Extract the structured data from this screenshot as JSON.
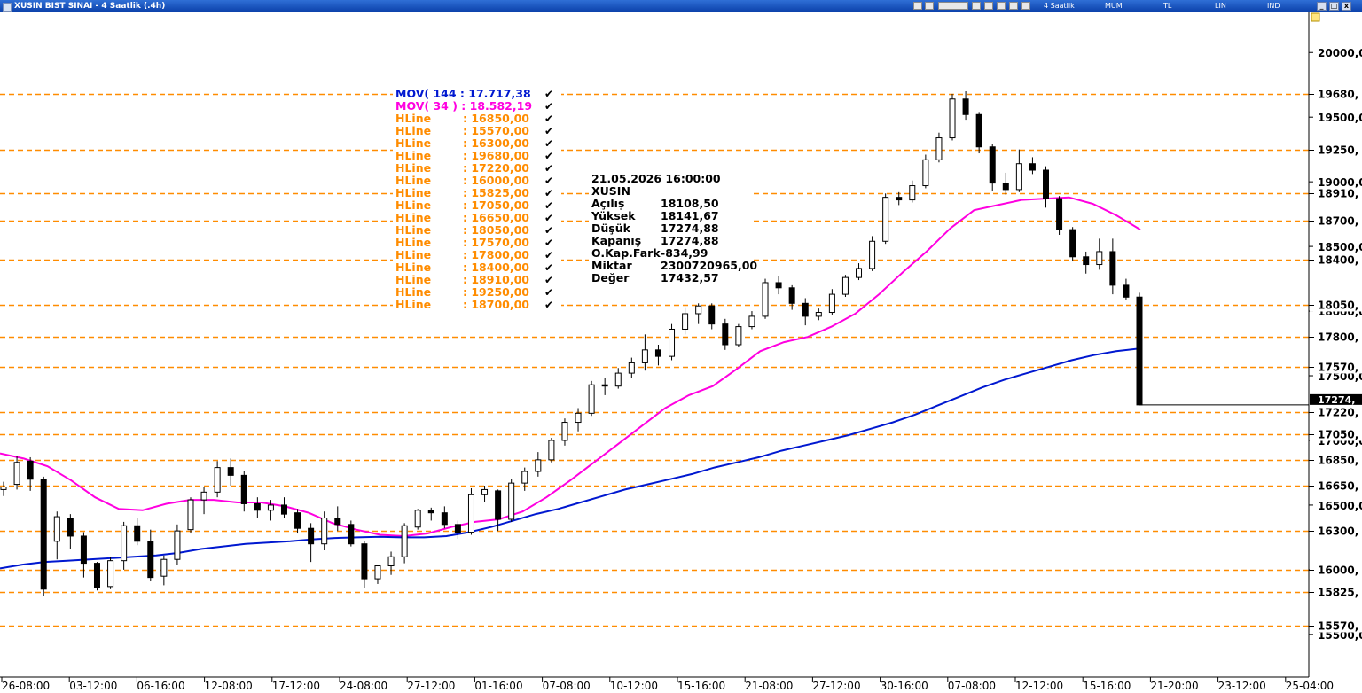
{
  "window": {
    "title": "XUSIN BIST SINAI - 4 Saatlik (.4h)",
    "period_label": "4 Saatlik",
    "mode_buttons": [
      "MUM",
      "TL",
      "LIN",
      "IND"
    ]
  },
  "legend": {
    "mov144": "MOV( 144 : 17.717,38",
    "mov34": "MOV( 34 ) : 18.582,19",
    "hlines": [
      {
        "label": "HLine",
        "value": ": 16850,00"
      },
      {
        "label": "HLine",
        "value": ": 15570,00"
      },
      {
        "label": "HLine",
        "value": ": 16300,00"
      },
      {
        "label": "HLine",
        "value": ": 19680,00"
      },
      {
        "label": "HLine",
        "value": ": 17220,00"
      },
      {
        "label": "HLine",
        "value": ": 16000,00"
      },
      {
        "label": "HLine",
        "value": ": 15825,00"
      },
      {
        "label": "HLine",
        "value": ": 17050,00"
      },
      {
        "label": "HLine",
        "value": ": 16650,00"
      },
      {
        "label": "HLine",
        "value": ": 18050,00"
      },
      {
        "label": "HLine",
        "value": ": 17570,00"
      },
      {
        "label": "HLine",
        "value": ": 17800,00"
      },
      {
        "label": "HLine",
        "value": ": 18400,00"
      },
      {
        "label": "HLine",
        "value": ": 18910,00"
      },
      {
        "label": "HLine",
        "value": ": 19250,00"
      },
      {
        "label": "HLine",
        "value": ": 18700,00"
      }
    ]
  },
  "info_box": {
    "datetime": "21.05.2026  16:00:00",
    "symbol": "XUSIN",
    "rows": [
      {
        "label": "Açılış",
        "value": "18108,50"
      },
      {
        "label": "Yüksek",
        "value": "18141,67"
      },
      {
        "label": "Düşük",
        "value": "17274,88"
      },
      {
        "label": "Kapanış",
        "value": "17274,88"
      },
      {
        "label": "O.Kap.Fark",
        "value": "-834,99"
      },
      {
        "label": "Miktar",
        "value": "2300720965,00"
      },
      {
        "label": "Değer",
        "value": "17432,57"
      }
    ]
  },
  "chart_data": {
    "type": "candlestick",
    "ylim": [
      15170,
      20310
    ],
    "yticks": [
      "20000,0",
      "19500,0",
      "19000,0",
      "18500,0",
      "18000,0",
      "17500,0",
      "17000,0",
      "16500,0",
      "16000,0",
      "15500,0"
    ],
    "ytick_values": [
      20000,
      19500,
      19000,
      18500,
      18000,
      17500,
      17000,
      16500,
      16000,
      15500
    ],
    "xticks": [
      "26-08:00",
      "03-12:00",
      "06-16:00",
      "12-08:00",
      "17-12:00",
      "24-08:00",
      "27-12:00",
      "01-16:00",
      "07-08:00",
      "10-12:00",
      "15-16:00",
      "21-08:00",
      "27-12:00",
      "30-16:00",
      "07-08:00",
      "12-12:00",
      "15-16:00",
      "21-20:00",
      "23-12:00",
      "25-04:00"
    ],
    "hlines": [
      19680,
      19250,
      18910,
      18700,
      18400,
      18050,
      17800,
      17570,
      17220,
      17050,
      16850,
      16650,
      16300,
      16000,
      15825,
      15570
    ],
    "hline_labels": [
      "19680,",
      "19250,",
      "18910,",
      "18700,",
      "18400,",
      "18050,",
      "17800,",
      "17570,",
      "17220,",
      "17050,",
      "16850,",
      "16650,",
      "16300,",
      "16000,",
      "15825,",
      "15570,"
    ],
    "hline_color": "#ff8c00",
    "last_price": 17274.88,
    "last_price_label": "17274,",
    "mov144_color": "#0018d0",
    "mov34_color": "#ff00e0",
    "mov144": [
      16010,
      16040,
      16060,
      16070,
      16080,
      16090,
      16100,
      16110,
      16130,
      16160,
      16180,
      16200,
      16210,
      16220,
      16235,
      16245,
      16250,
      16255,
      16250,
      16250,
      16260,
      16290,
      16330,
      16380,
      16430,
      16470,
      16520,
      16570,
      16620,
      16660,
      16700,
      16740,
      16790,
      16830,
      16870,
      16920,
      16960,
      17000,
      17040,
      17090,
      17140,
      17200,
      17270,
      17340,
      17410,
      17470,
      17520,
      17570,
      17620,
      17660,
      17690,
      17710
    ],
    "mov34": [
      16900,
      16860,
      16800,
      16690,
      16560,
      16470,
      16460,
      16510,
      16540,
      16540,
      16520,
      16520,
      16490,
      16440,
      16360,
      16310,
      16270,
      16260,
      16280,
      16330,
      16370,
      16390,
      16450,
      16560,
      16690,
      16830,
      16970,
      17110,
      17250,
      17350,
      17420,
      17550,
      17690,
      17760,
      17800,
      17880,
      17980,
      18130,
      18300,
      18460,
      18640,
      18780,
      18820,
      18860,
      18870,
      18880,
      18830,
      18740,
      18630
    ],
    "candles": [
      [
        16620,
        16680,
        16570,
        16640
      ],
      [
        16660,
        16880,
        16620,
        16830
      ],
      [
        16840,
        16870,
        16610,
        16700
      ],
      [
        16700,
        16720,
        15800,
        15850
      ],
      [
        16220,
        16450,
        16080,
        16410
      ],
      [
        16400,
        16430,
        16160,
        16260
      ],
      [
        16260,
        16290,
        15940,
        16050
      ],
      [
        16050,
        16060,
        15840,
        15860
      ],
      [
        15870,
        16100,
        15850,
        16070
      ],
      [
        16070,
        16370,
        16000,
        16340
      ],
      [
        16340,
        16400,
        16190,
        16220
      ],
      [
        16220,
        16310,
        15910,
        15940
      ],
      [
        15950,
        16110,
        15880,
        16080
      ],
      [
        16080,
        16350,
        16040,
        16300
      ],
      [
        16310,
        16560,
        16280,
        16540
      ],
      [
        16540,
        16640,
        16430,
        16600
      ],
      [
        16600,
        16840,
        16560,
        16790
      ],
      [
        16790,
        16860,
        16650,
        16730
      ],
      [
        16730,
        16760,
        16450,
        16510
      ],
      [
        16510,
        16560,
        16400,
        16460
      ],
      [
        16460,
        16540,
        16380,
        16500
      ],
      [
        16500,
        16560,
        16400,
        16430
      ],
      [
        16440,
        16470,
        16280,
        16320
      ],
      [
        16320,
        16360,
        16060,
        16200
      ],
      [
        16200,
        16450,
        16150,
        16400
      ],
      [
        16400,
        16490,
        16300,
        16350
      ],
      [
        16350,
        16380,
        16180,
        16200
      ],
      [
        16200,
        16220,
        15860,
        15930
      ],
      [
        15930,
        16040,
        15890,
        16030
      ],
      [
        16030,
        16140,
        15960,
        16100
      ],
      [
        16100,
        16360,
        16050,
        16340
      ],
      [
        16330,
        16470,
        16310,
        16460
      ],
      [
        16460,
        16480,
        16380,
        16440
      ],
      [
        16440,
        16490,
        16320,
        16350
      ],
      [
        16350,
        16380,
        16240,
        16290
      ],
      [
        16290,
        16630,
        16270,
        16580
      ],
      [
        16580,
        16650,
        16520,
        16620
      ],
      [
        16610,
        16620,
        16300,
        16390
      ],
      [
        16390,
        16700,
        16370,
        16670
      ],
      [
        16670,
        16790,
        16610,
        16760
      ],
      [
        16760,
        16910,
        16720,
        16850
      ],
      [
        16850,
        17020,
        16830,
        17000
      ],
      [
        17000,
        17170,
        16960,
        17140
      ],
      [
        17140,
        17250,
        17070,
        17210
      ],
      [
        17210,
        17460,
        17190,
        17430
      ],
      [
        17430,
        17480,
        17350,
        17420
      ],
      [
        17420,
        17560,
        17400,
        17520
      ],
      [
        17520,
        17640,
        17480,
        17600
      ],
      [
        17600,
        17820,
        17540,
        17700
      ],
      [
        17700,
        17740,
        17580,
        17650
      ],
      [
        17650,
        17900,
        17620,
        17860
      ],
      [
        17860,
        18030,
        17820,
        17980
      ],
      [
        17980,
        18060,
        17900,
        18040
      ],
      [
        18040,
        18060,
        17860,
        17900
      ],
      [
        17900,
        17940,
        17700,
        17740
      ],
      [
        17740,
        17900,
        17720,
        17880
      ],
      [
        17880,
        18000,
        17860,
        17960
      ],
      [
        17960,
        18250,
        17940,
        18220
      ],
      [
        18220,
        18270,
        18130,
        18180
      ],
      [
        18180,
        18200,
        18010,
        18060
      ],
      [
        18060,
        18100,
        17890,
        17960
      ],
      [
        17960,
        18020,
        17930,
        17990
      ],
      [
        17990,
        18170,
        17970,
        18130
      ],
      [
        18130,
        18280,
        18110,
        18260
      ],
      [
        18260,
        18370,
        18240,
        18330
      ],
      [
        18330,
        18580,
        18310,
        18540
      ],
      [
        18540,
        18910,
        18520,
        18880
      ],
      [
        18880,
        18920,
        18820,
        18860
      ],
      [
        18860,
        19010,
        18840,
        18970
      ],
      [
        18970,
        19210,
        18950,
        19170
      ],
      [
        19170,
        19380,
        19150,
        19340
      ],
      [
        19340,
        19680,
        19320,
        19640
      ],
      [
        19640,
        19700,
        19480,
        19520
      ],
      [
        19520,
        19540,
        19220,
        19270
      ],
      [
        19270,
        19290,
        18930,
        18990
      ],
      [
        18990,
        19070,
        18900,
        18940
      ],
      [
        18940,
        19250,
        18920,
        19140
      ],
      [
        19140,
        19190,
        19060,
        19090
      ],
      [
        19090,
        19120,
        18800,
        18870
      ],
      [
        18870,
        18890,
        18590,
        18630
      ],
      [
        18630,
        18650,
        18390,
        18420
      ],
      [
        18420,
        18460,
        18290,
        18360
      ],
      [
        18360,
        18560,
        18320,
        18460
      ],
      [
        18460,
        18560,
        18130,
        18200
      ],
      [
        18200,
        18250,
        18090,
        18108
      ],
      [
        18108.5,
        18141.67,
        17274.88,
        17274.88
      ]
    ]
  }
}
